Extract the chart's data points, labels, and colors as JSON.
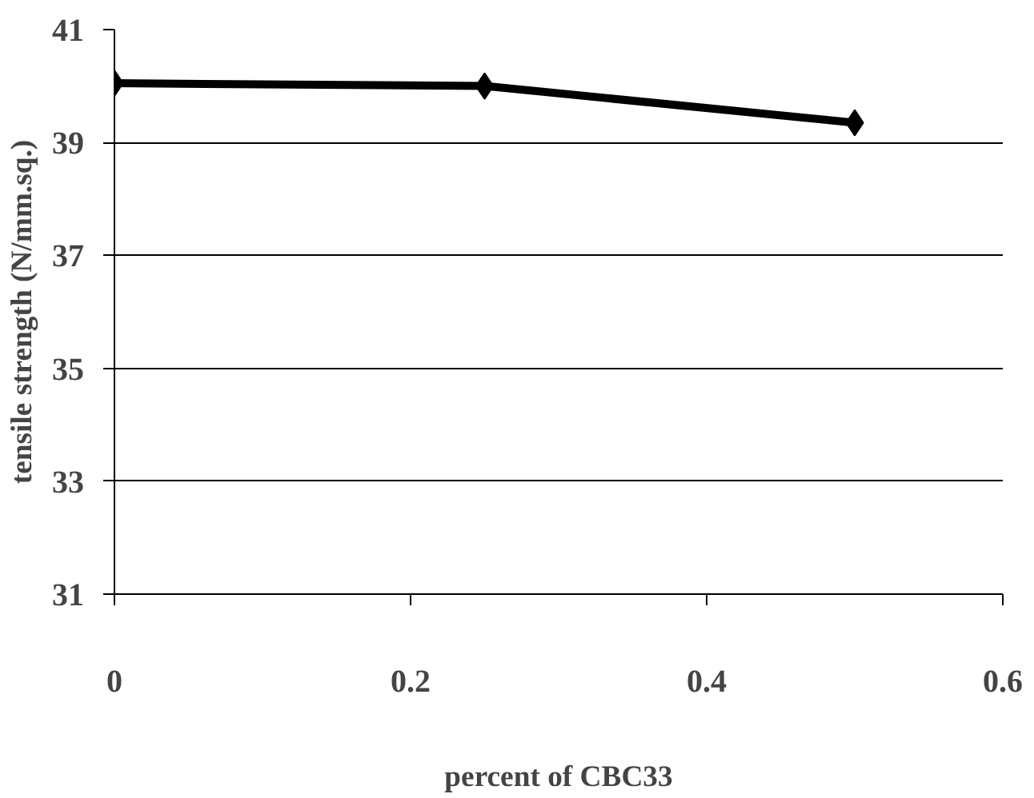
{
  "chart_data": {
    "type": "line",
    "xlabel": "percent of CBC33",
    "ylabel": "tensile strength (N/mm.sq.)",
    "x": [
      0,
      0.25,
      0.5
    ],
    "series": [
      {
        "color": "#000000",
        "values": [
          40.05,
          40.0,
          39.35
        ]
      }
    ],
    "xlim": [
      0,
      0.6
    ],
    "xticks": [
      0,
      0.2,
      0.4,
      0.6
    ],
    "ylim": [
      31,
      41
    ],
    "yticks": [
      31,
      33,
      35,
      37,
      39,
      41
    ],
    "grid": "y",
    "marker": "diamond",
    "line_style": "solid"
  }
}
